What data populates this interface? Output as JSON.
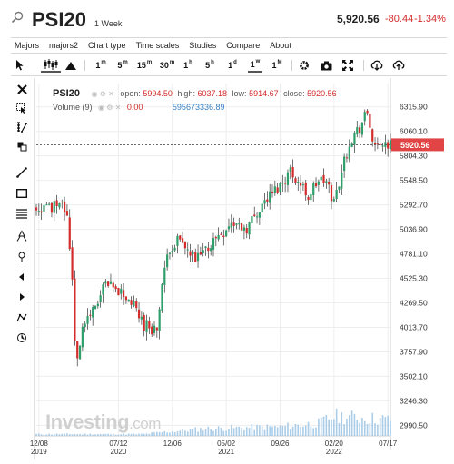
{
  "header": {
    "symbol": "PSI20",
    "period": "1 Week",
    "price": "5,920.56",
    "change": "-80.44",
    "change_pct": "-1.34%"
  },
  "menu": [
    "Majors",
    "majors2",
    "Chart type",
    "Time scales",
    "Studies",
    "Compare",
    "About"
  ],
  "toolbar": {
    "intervals": [
      {
        "num": "1",
        "unit": "m"
      },
      {
        "num": "5",
        "unit": "m"
      },
      {
        "num": "15",
        "unit": "m"
      },
      {
        "num": "30",
        "unit": "m"
      },
      {
        "num": "1",
        "unit": "h"
      },
      {
        "num": "5",
        "unit": "h"
      },
      {
        "num": "1",
        "unit": "d"
      },
      {
        "num": "1",
        "unit": "w"
      },
      {
        "num": "1",
        "unit": "M"
      }
    ],
    "active_interval": "1w"
  },
  "legend": {
    "symbol": "PSI20",
    "open_label": "open:",
    "open": "5994.50",
    "high_label": "high:",
    "high": "6037.18",
    "low_label": "low:",
    "low": "5914.67",
    "close_label": "close:",
    "close": "5920.56",
    "volume_label": "Volume (9)",
    "volume_value": "0.00",
    "volume_ma": "595673336.89"
  },
  "watermark": {
    "brand": "Investing",
    "tld": ".com"
  },
  "colors": {
    "up": "#2e9e6a",
    "down": "#d42b2b",
    "volume": "#a9cce8",
    "price_tag": "#e04444",
    "accent": "#3b82c4"
  },
  "icons": [
    "search-icon",
    "cursor-icon",
    "candles-icon",
    "mountain-icon",
    "gear-icon",
    "camera-icon",
    "fullscreen-icon",
    "download-icon",
    "upload-icon"
  ],
  "chart_data": {
    "type": "candlestick",
    "title": "PSI20",
    "y_ticks": [
      "6315.90",
      "6060.10",
      "5804.30",
      "5548.50",
      "5292.70",
      "5036.90",
      "4781.10",
      "4525.30",
      "4269.50",
      "4013.70",
      "3757.90",
      "3502.10",
      "3246.30",
      "2990.50"
    ],
    "ylim": [
      2880,
      6560
    ],
    "x_ticks": [
      {
        "label": "12/08",
        "year": "2019",
        "x": "2019-12-08"
      },
      {
        "label": "07/12",
        "year": "2020",
        "x": "2020-07-12"
      },
      {
        "label": "12/06",
        "year": "",
        "x": "2020-12-06"
      },
      {
        "label": "05/02",
        "year": "2021",
        "x": "2021-05-02"
      },
      {
        "label": "09/26",
        "year": "",
        "x": "2021-09-26"
      },
      {
        "label": "02/20",
        "year": "2022",
        "x": "2022-02-20"
      },
      {
        "label": "07/17",
        "year": "",
        "x": "2022-07-17"
      }
    ],
    "xlim": [
      "2019-12-01",
      "2022-07-24"
    ],
    "last_price": "5920.56",
    "price_path": [
      [
        "2019-12-01",
        5250
      ],
      [
        "2020-01-12",
        5270
      ],
      [
        "2020-02-09",
        5380
      ],
      [
        "2020-02-23",
        5150
      ],
      [
        "2020-03-01",
        4850
      ],
      [
        "2020-03-08",
        4550
      ],
      [
        "2020-03-15",
        3900
      ],
      [
        "2020-03-22",
        3720
      ],
      [
        "2020-04-05",
        4000
      ],
      [
        "2020-04-26",
        4150
      ],
      [
        "2020-06-07",
        4450
      ],
      [
        "2020-06-28",
        4400
      ],
      [
        "2020-07-19",
        4380
      ],
      [
        "2020-08-16",
        4270
      ],
      [
        "2020-09-20",
        4050
      ],
      [
        "2020-10-25",
        3980
      ],
      [
        "2020-11-08",
        4450
      ],
      [
        "2020-11-29",
        4850
      ],
      [
        "2020-12-20",
        4920
      ],
      [
        "2021-01-17",
        4800
      ],
      [
        "2021-02-07",
        4700
      ],
      [
        "2021-03-07",
        4820
      ],
      [
        "2021-04-04",
        4950
      ],
      [
        "2021-05-16",
        5100
      ],
      [
        "2021-06-27",
        5050
      ],
      [
        "2021-08-08",
        5300
      ],
      [
        "2021-09-26",
        5500
      ],
      [
        "2021-10-24",
        5650
      ],
      [
        "2021-11-21",
        5500
      ],
      [
        "2021-12-12",
        5380
      ],
      [
        "2022-01-09",
        5550
      ],
      [
        "2022-01-30",
        5520
      ],
      [
        "2022-02-20",
        5320
      ],
      [
        "2022-03-13",
        5650
      ],
      [
        "2022-04-03",
        5950
      ],
      [
        "2022-05-01",
        6100
      ],
      [
        "2022-05-22",
        6250
      ],
      [
        "2022-06-12",
        5850
      ],
      [
        "2022-07-03",
        5950
      ],
      [
        "2022-07-17",
        5920
      ]
    ],
    "volume_path": [
      [
        "2019-12-01",
        0.05
      ],
      [
        "2020-09-20",
        0.05
      ],
      [
        "2020-11-08",
        0.1
      ],
      [
        "2021-03-07",
        0.2
      ],
      [
        "2021-09-26",
        0.25
      ],
      [
        "2022-01-09",
        0.35
      ],
      [
        "2022-02-20",
        0.55
      ],
      [
        "2022-05-01",
        0.5
      ],
      [
        "2022-07-17",
        0.45
      ]
    ]
  }
}
